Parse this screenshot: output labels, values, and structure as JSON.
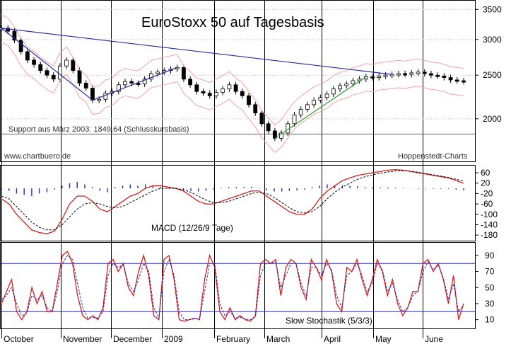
{
  "chart_data": [
    {
      "type": "line",
      "panel": "price",
      "title": "EuroStoxx 50 auf Tagesbasis",
      "annotations": {
        "support": "Support aus März 2003: 1849,64 (Schlusskursbasis)",
        "source_left": "www.chartbuero.de",
        "source_right": "Hoppenstedt-Charts"
      },
      "y_ticks": [
        3500,
        3000,
        2500,
        2000
      ],
      "ylim": [
        1620,
        3620
      ],
      "y_scale": "log",
      "support_level": 1849.64,
      "months": [
        "October",
        "November",
        "December",
        "2009",
        "February",
        "March",
        "April",
        "May",
        "June"
      ],
      "series": [
        {
          "values": [
            3180,
            3130,
            2990,
            2820,
            2700,
            2640,
            2560,
            2500,
            2450,
            2620,
            2700,
            2560,
            2400,
            2340,
            2200,
            2210,
            2280,
            2300,
            2380,
            2420,
            2400,
            2390,
            2450,
            2520,
            2540,
            2560,
            2580,
            2600,
            2450,
            2380,
            2300,
            2280,
            2250,
            2290,
            2330,
            2380,
            2300,
            2250,
            2150,
            2060,
            1950,
            1880,
            1810,
            1860,
            1950,
            2040,
            2100,
            2150,
            2200,
            2230,
            2270,
            2330,
            2370,
            2390,
            2430,
            2450,
            2480,
            2470,
            2490,
            2500,
            2510,
            2520,
            2510,
            2530,
            2540,
            2520,
            2500,
            2490,
            2470,
            2440,
            2430,
            2420
          ]
        }
      ]
    },
    {
      "type": "line",
      "panel": "macd",
      "title": "MACD (12/26/9 Tage)",
      "y_ticks": [
        60,
        20,
        -20,
        -60,
        -100,
        -140,
        -180
      ],
      "ylim": [
        -196,
        82
      ],
      "series": [
        {
          "values": [
            -40,
            -60,
            -100,
            -130,
            -160,
            -170,
            -175,
            -165,
            -120,
            -60,
            -30,
            -30,
            -50,
            -80,
            -90,
            -70,
            -50,
            -30,
            -20,
            0,
            10,
            10,
            5,
            0,
            -10,
            -30,
            -50,
            -60,
            -60,
            -50,
            -40,
            -30,
            -20,
            -10,
            -10,
            -30,
            -50,
            -70,
            -90,
            -100,
            -100,
            -80,
            -40,
            -10,
            10,
            30,
            40,
            50,
            55,
            60,
            65,
            70,
            72,
            70,
            65,
            60,
            55,
            50,
            45,
            40,
            30,
            20
          ]
        },
        {
          "values": [
            -30,
            -40,
            -70,
            -100,
            -130,
            -150,
            -160,
            -160,
            -140,
            -110,
            -80,
            -60,
            -55,
            -60,
            -70,
            -75,
            -70,
            -55,
            -40,
            -25,
            -10,
            0,
            0,
            0,
            -5,
            -15,
            -30,
            -45,
            -55,
            -55,
            -50,
            -40,
            -30,
            -20,
            -15,
            -20,
            -35,
            -55,
            -75,
            -90,
            -95,
            -90,
            -70,
            -40,
            -15,
            5,
            20,
            35,
            45,
            52,
            58,
            63,
            67,
            68,
            66,
            62,
            57,
            52,
            47,
            42,
            35,
            28
          ]
        }
      ],
      "histogram": [
        -5,
        -10,
        -20,
        -25,
        -30,
        -20,
        -15,
        -5,
        10,
        20,
        25,
        15,
        5,
        -10,
        -15,
        5,
        10,
        15,
        10,
        15,
        10,
        5,
        3,
        -2,
        -8,
        -10,
        -12,
        -10,
        -5,
        2,
        5,
        5,
        5,
        6,
        2,
        -8,
        -12,
        -12,
        -10,
        -8,
        -5,
        5,
        10,
        15,
        12,
        12,
        10,
        8,
        5,
        5,
        4,
        4,
        3,
        2,
        -1,
        -2,
        -2,
        -2,
        -2,
        -2,
        -5,
        -8
      ]
    },
    {
      "type": "line",
      "panel": "stochastic",
      "title": "Slow Stochastik (5/3/3)",
      "y_ticks": [
        90,
        70,
        50,
        30,
        10
      ],
      "ylim": [
        0,
        104
      ],
      "levels": [
        80,
        20
      ],
      "series": [
        {
          "values": [
            30,
            45,
            60,
            20,
            10,
            20,
            50,
            30,
            45,
            20,
            20,
            55,
            90,
            95,
            80,
            40,
            15,
            10,
            15,
            10,
            25,
            80,
            85,
            70,
            80,
            50,
            40,
            70,
            90,
            65,
            15,
            10,
            85,
            90,
            60,
            10,
            8,
            10,
            12,
            10,
            60,
            90,
            75,
            20,
            10,
            25,
            10,
            15,
            10,
            8,
            15,
            80,
            85,
            80,
            85,
            40,
            75,
            85,
            80,
            50,
            35,
            85,
            75,
            60,
            85,
            70,
            30,
            20,
            75,
            70,
            85,
            60,
            40,
            60,
            85,
            70,
            40,
            60,
            30,
            15,
            25,
            45,
            45,
            80,
            85,
            70,
            80,
            60,
            30,
            65,
            10,
            30
          ]
        },
        {
          "values": [
            35,
            40,
            50,
            30,
            15,
            18,
            40,
            35,
            40,
            25,
            20,
            45,
            80,
            90,
            85,
            55,
            25,
            12,
            13,
            12,
            20,
            65,
            80,
            75,
            78,
            55,
            45,
            60,
            80,
            70,
            25,
            12,
            70,
            85,
            65,
            20,
            10,
            10,
            11,
            11,
            45,
            80,
            80,
            30,
            15,
            20,
            12,
            13,
            11,
            10,
            13,
            65,
            80,
            80,
            82,
            50,
            65,
            80,
            80,
            55,
            40,
            75,
            75,
            65,
            80,
            72,
            40,
            25,
            65,
            70,
            80,
            65,
            45,
            55,
            80,
            72,
            45,
            55,
            35,
            20,
            25,
            40,
            45,
            70,
            82,
            72,
            78,
            62,
            35,
            55,
            20,
            28
          ]
        }
      ]
    }
  ]
}
